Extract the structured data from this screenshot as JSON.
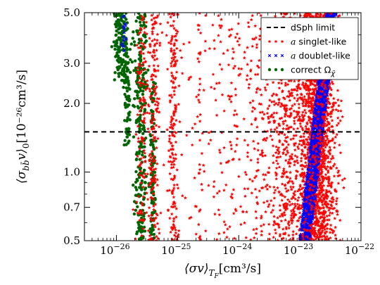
{
  "chart_data": {
    "type": "scatter",
    "title": "",
    "xlabel_parts": {
      "main": "⟨σv⟩",
      "sub": "T",
      "subsub": "F",
      "unit": "[cm³/s]"
    },
    "ylabel_parts": {
      "main": "⟨σ",
      "sub": "bb̄",
      "after": "v⟩",
      "sub2": "0",
      "unit": "[10⁻²⁶cm³/s]"
    },
    "x_scale": "log",
    "y_scale": "log",
    "xlim": [
      3e-27,
      1e-22
    ],
    "ylim": [
      0.5,
      5.0
    ],
    "x_ticks": [
      {
        "value": 1e-26,
        "base": "10",
        "exp": "−26"
      },
      {
        "value": 1e-25,
        "base": "10",
        "exp": "−25"
      },
      {
        "value": 1e-24,
        "base": "10",
        "exp": "−24"
      },
      {
        "value": 1e-23,
        "base": "10",
        "exp": "−23"
      },
      {
        "value": 1e-22,
        "base": "10",
        "exp": "−22"
      }
    ],
    "y_ticks": [
      {
        "value": 0.5,
        "label": "0.5"
      },
      {
        "value": 0.7,
        "label": "0.7"
      },
      {
        "value": 1.0,
        "label": "1.0"
      },
      {
        "value": 2.0,
        "label": "2.0"
      },
      {
        "value": 3.0,
        "label": "3.0"
      },
      {
        "value": 5.0,
        "label": "5.0"
      }
    ],
    "grid": false,
    "legend_position": "top-right",
    "limit_line": {
      "name": "dSph limit",
      "y": 1.5,
      "style": "dashed",
      "color": "#000000"
    },
    "series": [
      {
        "name_prefix": "a",
        "name_suffix": " singlet-like",
        "marker": "star",
        "color": "#ff0000",
        "clusters": [
          {
            "x_center": 2.6e-26,
            "x_spread_dex": 0.05,
            "y_range": [
              0.5,
              5.0
            ],
            "count": 120
          },
          {
            "x_center": 4e-26,
            "x_spread_dex": 0.05,
            "y_range": [
              0.5,
              5.0
            ],
            "count": 180
          },
          {
            "x_center": 8.5e-26,
            "x_spread_dex": 0.04,
            "y_range": [
              0.5,
              5.0
            ],
            "count": 180
          },
          {
            "x_center": 2.3e-25,
            "x_spread_dex": 0.03,
            "y_range": [
              0.5,
              5.0
            ],
            "count": 30
          },
          {
            "x_center": 1e-24,
            "x_spread_dex": 0.5,
            "y_range": [
              0.5,
              5.0
            ],
            "count": 260
          },
          {
            "x_center": 8e-24,
            "x_spread_dex": 0.3,
            "y_range": [
              0.5,
              5.0
            ],
            "count": 900
          },
          {
            "x_center": 2e-23,
            "x_spread_dex": 0.15,
            "y_range": [
              0.5,
              5.0
            ],
            "count": 1400
          }
        ]
      },
      {
        "name_prefix": "a",
        "name_suffix": " doublet-like",
        "marker": "x",
        "color": "#0000ff",
        "band": {
          "x_at_y_min": 1.2e-23,
          "x_at_y_max": 3.3e-23,
          "y_range": [
            0.5,
            5.0
          ],
          "width_dex": 0.18,
          "count": 1500
        },
        "extra_clusters": [
          {
            "x_center": 1.3e-26,
            "x_spread_dex": 0.04,
            "y_range": [
              3.3,
              5.0
            ],
            "count": 15
          }
        ]
      },
      {
        "name": "correct Ω",
        "name_sub": "χ̃",
        "marker": "circle",
        "color": "#006400",
        "clusters": [
          {
            "x_center": 1.2e-26,
            "x_spread_dex": 0.06,
            "y_range": [
              2.5,
              5.0
            ],
            "count": 160
          },
          {
            "x_center": 1.5e-26,
            "x_spread_dex": 0.03,
            "y_range": [
              1.3,
              3.5
            ],
            "count": 80
          },
          {
            "x_center": 2.5e-26,
            "x_spread_dex": 0.05,
            "y_range": [
              0.5,
              5.0
            ],
            "count": 260
          },
          {
            "x_center": 3.9e-26,
            "x_spread_dex": 0.02,
            "y_range": [
              0.5,
              2.5
            ],
            "count": 120
          }
        ]
      }
    ]
  }
}
